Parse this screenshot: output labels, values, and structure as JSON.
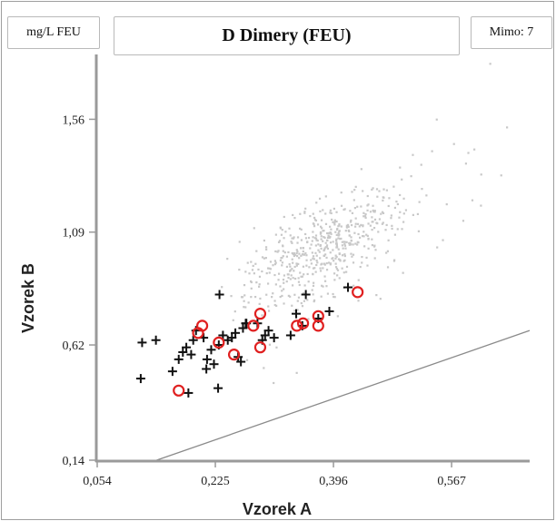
{
  "header": {
    "unit": "mg/L FEU",
    "title": "D Dimery (FEU)",
    "outside_label": "Mimo: 7"
  },
  "chart_data": {
    "type": "scatter",
    "title": "D Dimery (FEU)",
    "unit": "mg/L FEU",
    "xlabel": "Vzorek A",
    "ylabel": "Vzorek B",
    "xlim": [
      0.054,
      0.68
    ],
    "ylim": [
      0.14,
      1.83
    ],
    "x_ticks": [
      "0,054",
      "0,225",
      "0,396",
      "0,567"
    ],
    "x_tick_values": [
      0.054,
      0.225,
      0.396,
      0.567
    ],
    "y_ticks": [
      "0,14",
      "0,62",
      "1,09",
      "1,56"
    ],
    "y_tick_values": [
      0.14,
      0.62,
      1.09,
      1.56
    ],
    "identity_line": true,
    "grid": false,
    "colors": {
      "background_cloud": "#c8c8c8",
      "plus": "#111111",
      "circle": "#e02020",
      "line": "#8a8a8a"
    },
    "series": [
      {
        "marker": "cross",
        "color": "#111111",
        "points": [
          [
            0.119,
            0.63
          ],
          [
            0.139,
            0.64
          ],
          [
            0.117,
            0.48
          ],
          [
            0.163,
            0.51
          ],
          [
            0.172,
            0.56
          ],
          [
            0.178,
            0.59
          ],
          [
            0.183,
            0.61
          ],
          [
            0.19,
            0.58
          ],
          [
            0.193,
            0.64
          ],
          [
            0.197,
            0.68
          ],
          [
            0.208,
            0.65
          ],
          [
            0.212,
            0.52
          ],
          [
            0.213,
            0.56
          ],
          [
            0.223,
            0.54
          ],
          [
            0.219,
            0.6
          ],
          [
            0.23,
            0.62
          ],
          [
            0.236,
            0.66
          ],
          [
            0.243,
            0.64
          ],
          [
            0.249,
            0.65
          ],
          [
            0.254,
            0.67
          ],
          [
            0.262,
            0.55
          ],
          [
            0.265,
            0.69
          ],
          [
            0.27,
            0.71
          ],
          [
            0.286,
            0.71
          ],
          [
            0.293,
            0.64
          ],
          [
            0.297,
            0.66
          ],
          [
            0.302,
            0.68
          ],
          [
            0.31,
            0.65
          ],
          [
            0.334,
            0.66
          ],
          [
            0.342,
            0.75
          ],
          [
            0.351,
            0.7
          ],
          [
            0.356,
            0.83
          ],
          [
            0.374,
            0.73
          ],
          [
            0.39,
            0.76
          ],
          [
            0.417,
            0.86
          ],
          [
            0.229,
            0.44
          ],
          [
            0.231,
            0.83
          ],
          [
            0.269,
            0.71
          ],
          [
            0.186,
            0.42
          ],
          [
            0.258,
            0.57
          ]
        ]
      },
      {
        "marker": "circle",
        "color": "#e02020",
        "points": [
          [
            0.172,
            0.43
          ],
          [
            0.2,
            0.67
          ],
          [
            0.206,
            0.7
          ],
          [
            0.23,
            0.63
          ],
          [
            0.252,
            0.58
          ],
          [
            0.28,
            0.7
          ],
          [
            0.29,
            0.61
          ],
          [
            0.29,
            0.75
          ],
          [
            0.343,
            0.7
          ],
          [
            0.352,
            0.71
          ],
          [
            0.374,
            0.7
          ],
          [
            0.374,
            0.74
          ],
          [
            0.431,
            0.84
          ]
        ]
      }
    ]
  }
}
